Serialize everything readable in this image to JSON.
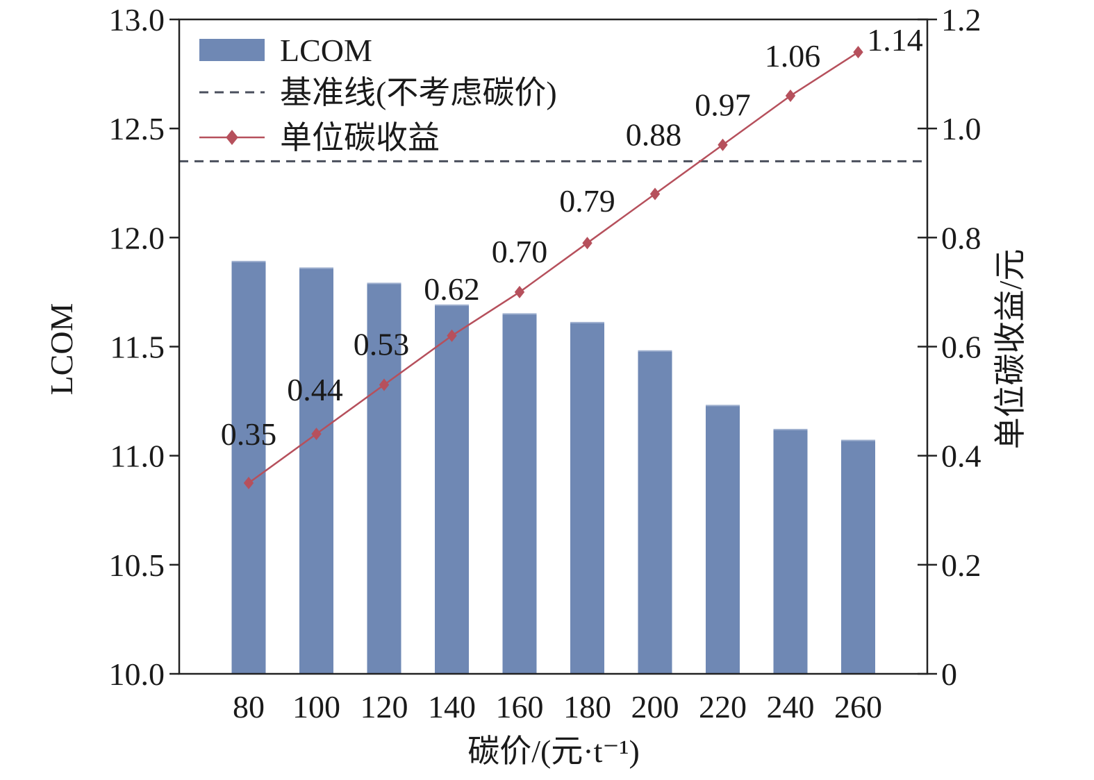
{
  "chart_data": {
    "type": "bar",
    "xlabel": "碳价/(元·t⁻¹)",
    "ylabel": "LCOM",
    "y2label": "单位碳收益/元",
    "categories": [
      "80",
      "100",
      "120",
      "140",
      "160",
      "180",
      "200",
      "220",
      "240",
      "260"
    ],
    "ylim": [
      10.0,
      13.0
    ],
    "yticks": [
      "10.0",
      "10.5",
      "11.0",
      "11.5",
      "12.0",
      "12.5",
      "13.0"
    ],
    "y2lim": [
      0,
      1.2
    ],
    "y2ticks": [
      "0",
      "0.2",
      "0.4",
      "0.6",
      "0.8",
      "1.0",
      "1.2"
    ],
    "series": [
      {
        "name": "LCOM",
        "type": "bar",
        "axis": "left",
        "color": "#6f88b4",
        "values": [
          11.89,
          11.86,
          11.79,
          11.69,
          11.65,
          11.61,
          11.48,
          11.23,
          11.12,
          11.07
        ]
      },
      {
        "name": "基准线(不考虑碳价)",
        "type": "hline",
        "axis": "left",
        "color": "#4a4f5c",
        "value": 12.35
      },
      {
        "name": "单位碳收益",
        "type": "line",
        "axis": "right",
        "color": "#b6505c",
        "values": [
          0.35,
          0.44,
          0.53,
          0.62,
          0.7,
          0.79,
          0.88,
          0.97,
          1.06,
          1.14
        ],
        "labels": [
          "0.35",
          "0.44",
          "0.53",
          "0.62",
          "0.70",
          "0.79",
          "0.88",
          "0.97",
          "1.06",
          "1.14"
        ]
      }
    ],
    "legend_position": "top-left",
    "grid": false
  }
}
